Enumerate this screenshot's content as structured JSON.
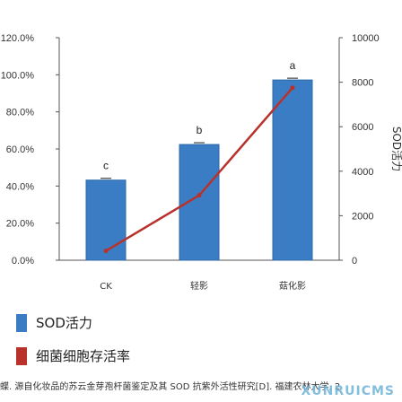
{
  "chart_data": {
    "type": "bar+line",
    "categories": [
      "CK",
      "轻影",
      "菇化影"
    ],
    "series": [
      {
        "name": "SOD活力",
        "type": "bar",
        "axis": "right",
        "values": [
          3600,
          5200,
          8100
        ],
        "labels": [
          "c",
          "b",
          "a"
        ],
        "color": "#3b7dc4"
      },
      {
        "name": "细菌细胞存活率",
        "type": "line",
        "axis": "left",
        "values": [
          5.0,
          35.0,
          93.0
        ],
        "color": "#b8312b"
      }
    ],
    "y_left": {
      "ticks": [
        "0.0%",
        "20.0%",
        "40.0%",
        "60.0%",
        "80.0%",
        "100.0%",
        "120.0%"
      ],
      "lim": [
        0,
        120
      ]
    },
    "y_right": {
      "label": "SOD活力",
      "ticks": [
        "0",
        "2000",
        "4000",
        "6000",
        "8000",
        "10000"
      ],
      "lim": [
        0,
        10000
      ]
    },
    "gridlines": false
  },
  "caption": "蝶. 源自化妆品的苏云金芽孢杆菌鉴定及其 SOD 抗紫外活性研究[D]. 福建农林大学, 2",
  "watermark": "XUNRUICMS"
}
